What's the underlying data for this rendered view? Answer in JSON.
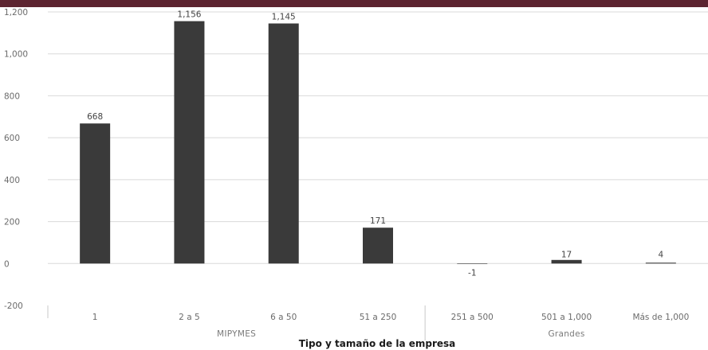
{
  "colors": {
    "top_band": "#5c2430",
    "bar": "#3a3a3a",
    "grid": "#d9d9d9",
    "axis": "#c8c8c8",
    "text": "#6b6b6b"
  },
  "chart_data": {
    "type": "bar",
    "categories": [
      "1",
      "2 a 5",
      "6 a 50",
      "51 a 250",
      "251 a 500",
      "501 a 1,000",
      "Más de 1,000"
    ],
    "values": [
      668,
      1156,
      1145,
      171,
      -1,
      17,
      4
    ],
    "value_labels": [
      "668",
      "1,156",
      "1,145",
      "171",
      "-1",
      "17",
      "4"
    ],
    "groups": [
      {
        "name": "MIPYMES",
        "categories": [
          "1",
          "2 a 5",
          "6 a 50",
          "51 a 250"
        ]
      },
      {
        "name": "Grandes",
        "categories": [
          "251 a 500",
          "501 a 1,000",
          "Más de 1,000"
        ]
      }
    ],
    "title": "",
    "xlabel": "Tipo y tamaño de la empresa",
    "ylabel": "",
    "ylim": [
      -200,
      1200
    ],
    "yticks": [
      -200,
      0,
      200,
      400,
      600,
      800,
      1000,
      1200
    ],
    "ytick_labels": [
      "-200",
      "0",
      "200",
      "400",
      "600",
      "800",
      "1,000",
      "1,200"
    ],
    "grid": true,
    "legend": "none"
  }
}
